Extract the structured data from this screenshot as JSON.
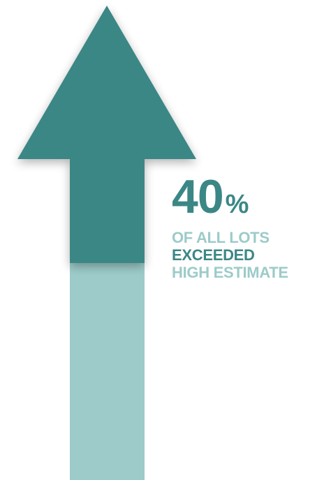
{
  "stat": {
    "value": "40",
    "unit": "%",
    "line1": "OF ALL LOTS",
    "line2": "EXCEEDED",
    "line3": "HIGH ESTIMATE"
  },
  "colors": {
    "dark_teal": "#3b8785",
    "light_teal": "#9ccbc9"
  },
  "icons": {
    "arrow": "up-arrow-icon"
  }
}
